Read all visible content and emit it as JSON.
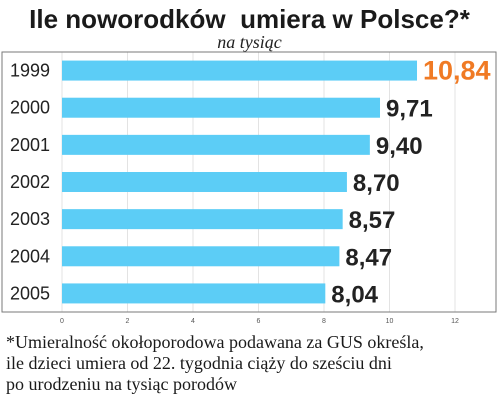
{
  "header": {
    "title": "Ile noworodków  umiera w Polsce?*",
    "subtitle": "na tysiąc"
  },
  "footnote": {
    "lines": [
      "*Umieralność okołoporodowa podawana za GUS określa,",
      "ile dzieci umiera od 22. tygodnia ciąży do sześciu dni",
      "po urodzeniu na tysiąc porodów"
    ]
  },
  "colors": {
    "bar": "#5ccdf6",
    "highlight_label": "#f07a24",
    "label": "#222222",
    "grid": "#e3e3e3",
    "frame": "#7a7a7a"
  },
  "chart_data": {
    "type": "bar",
    "orientation": "horizontal",
    "title": "Ile noworodków  umiera w Polsce?*",
    "subtitle": "na tysiąc",
    "categories": [
      "1999",
      "2000",
      "2001",
      "2002",
      "2003",
      "2004",
      "2005"
    ],
    "values": [
      10.84,
      9.71,
      9.4,
      8.7,
      8.57,
      8.47,
      8.04
    ],
    "value_labels": [
      "10,84",
      "9,71",
      "9,40",
      "8,70",
      "8,57",
      "8,47",
      "8,04"
    ],
    "highlighted_category": "1999",
    "xlim": [
      0,
      12
    ],
    "x_ticks": [
      0,
      2,
      4,
      6,
      8,
      10,
      12
    ],
    "grid": true,
    "xlabel": "",
    "ylabel": ""
  }
}
